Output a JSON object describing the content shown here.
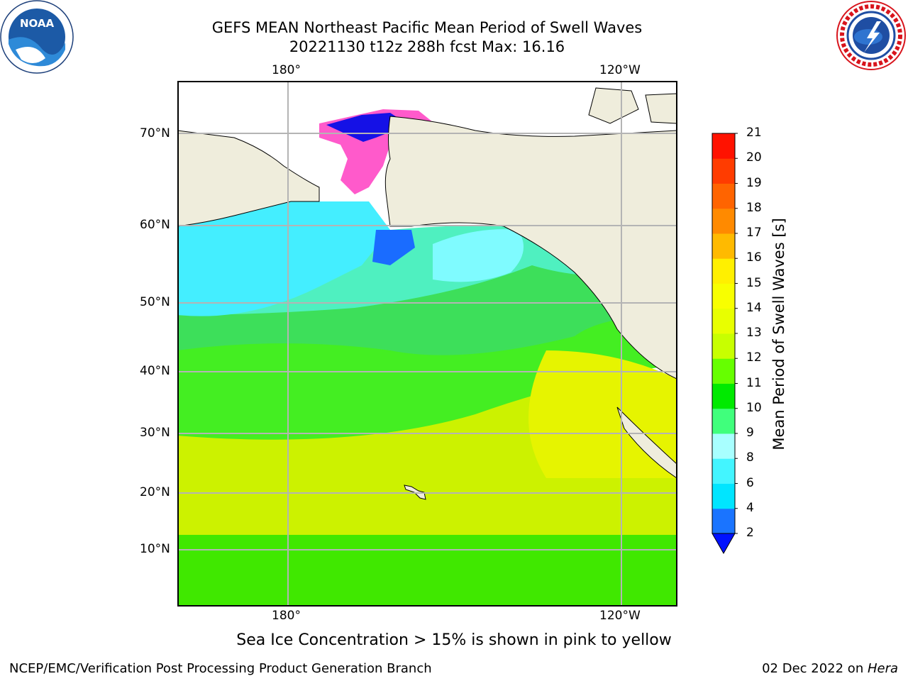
{
  "header": {
    "title_line1": "GEFS MEAN Northeast Pacific Mean Period of Swell Waves",
    "title_line2": "20221130 t12z 288h fcst   Max: 16.16"
  },
  "logos": {
    "left": {
      "name": "NOAA",
      "icon": "noaa-logo",
      "colors": {
        "ring": "#ffffff",
        "blue": "#1c5aa6",
        "sky": "#2e8ad8"
      }
    },
    "right": {
      "name": "NATIONAL WEATHER SERVICE",
      "icon": "nws-logo",
      "colors": {
        "ring": "#d8141c",
        "blue": "#1f4ea3"
      }
    }
  },
  "map": {
    "longitude_labels": [
      "180°",
      "120°W"
    ],
    "latitude_labels": [
      "70°N",
      "60°N",
      "50°N",
      "40°N",
      "30°N",
      "20°N",
      "10°N"
    ],
    "land_color": "#efeddc",
    "grid_color": "#b4b4b4"
  },
  "colorbar": {
    "label": "Mean Period of Swell Waves [s]",
    "ticks": [
      "2",
      "4",
      "6",
      "8",
      "9",
      "10",
      "11",
      "12",
      "13",
      "14",
      "15",
      "16",
      "17",
      "18",
      "19",
      "20",
      "21"
    ],
    "colors": [
      "#1a74ff",
      "#00e5ff",
      "#43f5ff",
      "#a8ffff",
      "#40ff7c",
      "#00ea00",
      "#66ff00",
      "#c8ff00",
      "#e8ff00",
      "#f8ff00",
      "#fff000",
      "#ffba00",
      "#ff8a00",
      "#ff6400",
      "#ff3c00",
      "#ff1200"
    ],
    "extend_color": "#0011ff"
  },
  "caption": "Sea Ice Concentration > 15% is shown in pink to yellow",
  "footer": {
    "left": "NCEP/EMC/Verification Post Processing Product Generation Branch",
    "right_date": "02 Dec 2022 on ",
    "right_host": "Hera"
  }
}
